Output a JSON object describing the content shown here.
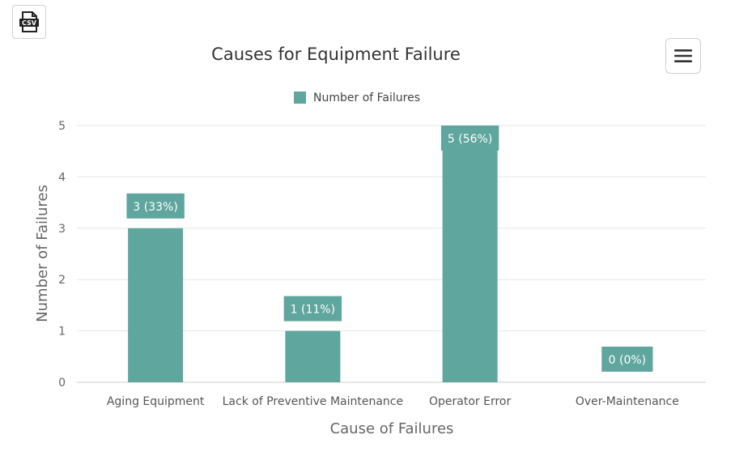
{
  "toolbar": {
    "csv_label": "CSV",
    "csv_icon": "csv-file-icon",
    "menu_icon": "hamburger-menu-icon"
  },
  "chart_data": {
    "type": "bar",
    "title": "Causes for Equipment Failure",
    "xlabel": "Cause of Failures",
    "ylabel": "Number of Failures",
    "categories": [
      "Aging Equipment",
      "Lack of Preventive Maintenance",
      "Operator Error",
      "Over-Maintenance"
    ],
    "series": [
      {
        "name": "Number of Failures",
        "values": [
          3,
          1,
          5,
          0
        ],
        "data_labels": [
          "3 (33%)",
          "1 (11%)",
          "5 (56%)",
          "0 (0%)"
        ],
        "color": "#5fa69e"
      }
    ],
    "ylim": [
      0,
      5
    ],
    "yticks": [
      "0",
      "1",
      "2",
      "3",
      "4",
      "5"
    ],
    "grid": true,
    "legend": "top-center"
  }
}
